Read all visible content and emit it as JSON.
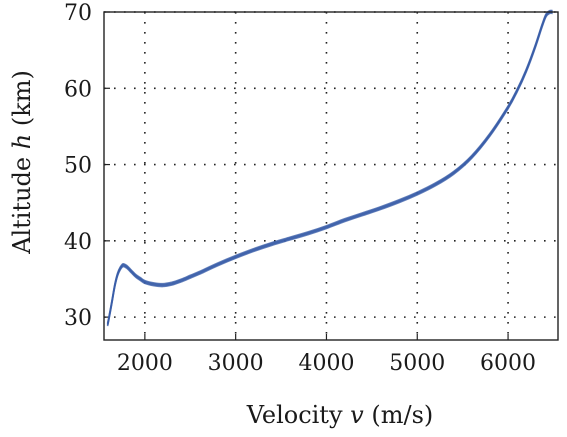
{
  "chart_data": {
    "type": "line",
    "xlabel": "Velocity",
    "xlabel_symbol": "v",
    "xlabel_unit": "(m/s)",
    "ylabel": "Altitude",
    "ylabel_symbol": "h",
    "ylabel_unit": "(km)",
    "xlim": [
      1550,
      6550
    ],
    "ylim": [
      27,
      70
    ],
    "xticks": [
      2000,
      3000,
      4000,
      5000,
      6000
    ],
    "yticks": [
      30,
      40,
      50,
      60,
      70
    ],
    "grid": true,
    "grid_style": "dotted",
    "line_color": "#3a5ea8",
    "line_width_band": "thin band of overlapping trajectories",
    "series": [
      {
        "points": [
          [
            1590,
            29.0
          ],
          [
            1610,
            30.2
          ],
          [
            1640,
            32.2
          ],
          [
            1670,
            34.2
          ],
          [
            1700,
            35.6
          ],
          [
            1730,
            36.4
          ],
          [
            1760,
            36.8
          ],
          [
            1800,
            36.6
          ],
          [
            1850,
            36.0
          ],
          [
            1900,
            35.4
          ],
          [
            1950,
            35.0
          ],
          [
            2000,
            34.6
          ],
          [
            2100,
            34.3
          ],
          [
            2200,
            34.2
          ],
          [
            2300,
            34.4
          ],
          [
            2400,
            34.8
          ],
          [
            2500,
            35.3
          ],
          [
            2600,
            35.8
          ],
          [
            2800,
            36.9
          ],
          [
            3000,
            37.9
          ],
          [
            3200,
            38.8
          ],
          [
            3400,
            39.6
          ],
          [
            3600,
            40.3
          ],
          [
            3800,
            41.0
          ],
          [
            4000,
            41.8
          ],
          [
            4200,
            42.7
          ],
          [
            4400,
            43.5
          ],
          [
            4600,
            44.3
          ],
          [
            4800,
            45.2
          ],
          [
            5000,
            46.2
          ],
          [
            5200,
            47.4
          ],
          [
            5400,
            48.9
          ],
          [
            5600,
            51.0
          ],
          [
            5800,
            53.9
          ],
          [
            6000,
            57.5
          ],
          [
            6100,
            59.7
          ],
          [
            6200,
            62.3
          ],
          [
            6300,
            65.5
          ],
          [
            6380,
            68.4
          ],
          [
            6420,
            69.6
          ],
          [
            6460,
            70.0
          ],
          [
            6490,
            70.0
          ]
        ]
      }
    ]
  }
}
